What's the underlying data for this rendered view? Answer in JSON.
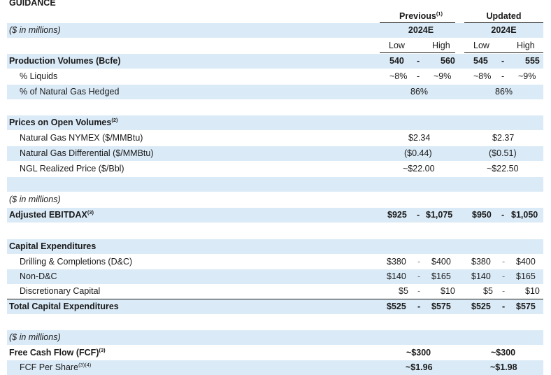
{
  "title": "GUIDANCE",
  "units_label": "($ in millions)",
  "columns": {
    "previous": {
      "title": "Previous",
      "note": "(1)",
      "year": "2024E"
    },
    "updated": {
      "title": "Updated",
      "year": "2024E"
    },
    "low": "Low",
    "high": "High",
    "dash": "-"
  },
  "production": {
    "label": "Production Volumes (Bcfe)",
    "prev_low": "540",
    "prev_high": "560",
    "upd_low": "545",
    "upd_high": "555",
    "liquids": {
      "label": "% Liquids",
      "prev_low": "~8%",
      "prev_high": "~9%",
      "upd_low": "~8%",
      "upd_high": "~9%"
    },
    "hedged": {
      "label": "% of Natural Gas Hedged",
      "prev": "86%",
      "upd": "86%"
    }
  },
  "prices": {
    "label": "Prices on Open Volumes",
    "note": "(2)",
    "nymex": {
      "label": "Natural Gas NYMEX ($/MMBtu)",
      "prev": "$2.34",
      "upd": "$2.37"
    },
    "differential": {
      "label": "Natural Gas Differential ($/MMBtu)",
      "prev": "($0.44)",
      "upd": "($0.51)"
    },
    "ngl": {
      "label": "NGL Realized Price ($/Bbl)",
      "prev": "~$22.00",
      "upd": "~$22.50"
    }
  },
  "ebitdax": {
    "label": "Adjusted EBITDAX",
    "note": "(3)",
    "prev_low": "$925",
    "prev_high": "$1,075",
    "upd_low": "$950",
    "upd_high": "$1,050"
  },
  "capex": {
    "label": "Capital Expenditures",
    "dc": {
      "label": "Drilling & Completions (D&C)",
      "prev_low": "$380",
      "prev_high": "$400",
      "upd_low": "$380",
      "upd_high": "$400"
    },
    "nondc": {
      "label": "Non-D&C",
      "prev_low": "$140",
      "prev_high": "$165",
      "upd_low": "$140",
      "upd_high": "$165"
    },
    "disc": {
      "label": "Discretionary Capital",
      "prev_low": "$5",
      "prev_high": "$10",
      "upd_low": "$5",
      "upd_high": "$10"
    },
    "total": {
      "label": "Total Capital Expenditures",
      "prev_low": "$525",
      "prev_high": "$575",
      "upd_low": "$525",
      "upd_high": "$575"
    }
  },
  "fcf": {
    "label": "Free Cash Flow (FCF)",
    "note": "(3)",
    "prev": "~$300",
    "upd": "~$300",
    "per_share": {
      "label": "FCF Per Share",
      "note": "(3)(4)",
      "prev": "~$1.96",
      "upd": "~$1.98"
    }
  }
}
